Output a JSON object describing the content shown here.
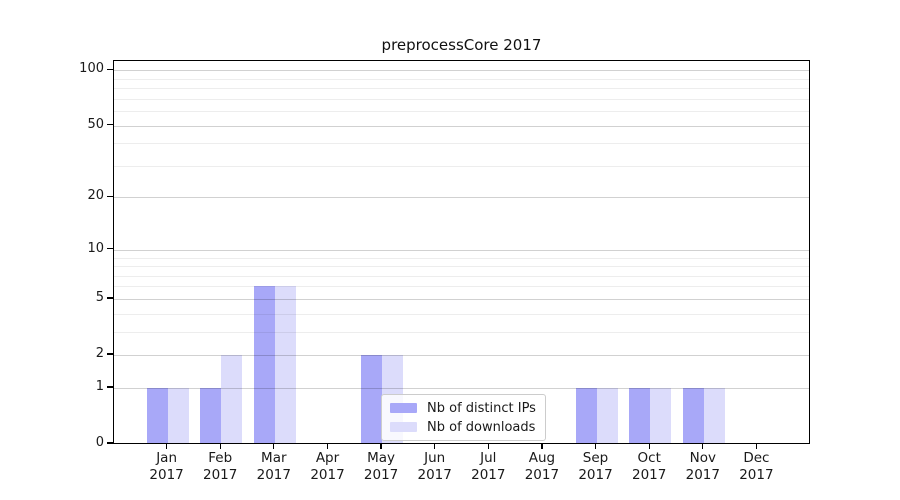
{
  "chart_data": {
    "type": "bar",
    "title": "preprocessCore 2017",
    "categories": [
      "Jan 2017",
      "Feb 2017",
      "Mar 2017",
      "Apr 2017",
      "May 2017",
      "Jun 2017",
      "Jul 2017",
      "Aug 2017",
      "Sep 2017",
      "Oct 2017",
      "Nov 2017",
      "Dec 2017"
    ],
    "series": [
      {
        "name": "Nb of distinct IPs",
        "color": "#a8a8f8",
        "values": [
          1,
          1,
          6,
          0,
          2,
          0,
          0,
          0,
          1,
          1,
          1,
          0
        ]
      },
      {
        "name": "Nb of downloads",
        "color": "#dcdcfb",
        "values": [
          1,
          2,
          6,
          0,
          2,
          0,
          0,
          0,
          1,
          1,
          1,
          0
        ]
      }
    ],
    "xlabel": "",
    "ylabel": "",
    "yscale": "log1p",
    "ylim": [
      0,
      112
    ],
    "y_axis_ticks": [
      0,
      1,
      2,
      5,
      10,
      20,
      50,
      100
    ],
    "y_minor_gridlines": [
      3,
      4,
      6,
      7,
      8,
      9,
      30,
      40,
      60,
      70,
      80,
      90
    ],
    "grid": "on",
    "legend_position": "lower center"
  },
  "colors": {
    "background": "#ffffff",
    "spine": "#000000",
    "grid_major": "rgba(0,0,0,0.18)",
    "grid_minor": "rgba(0,0,0,0.07)",
    "bar_distinct_ips": "#a8a8f8",
    "bar_downloads": "#dcdcfb"
  }
}
